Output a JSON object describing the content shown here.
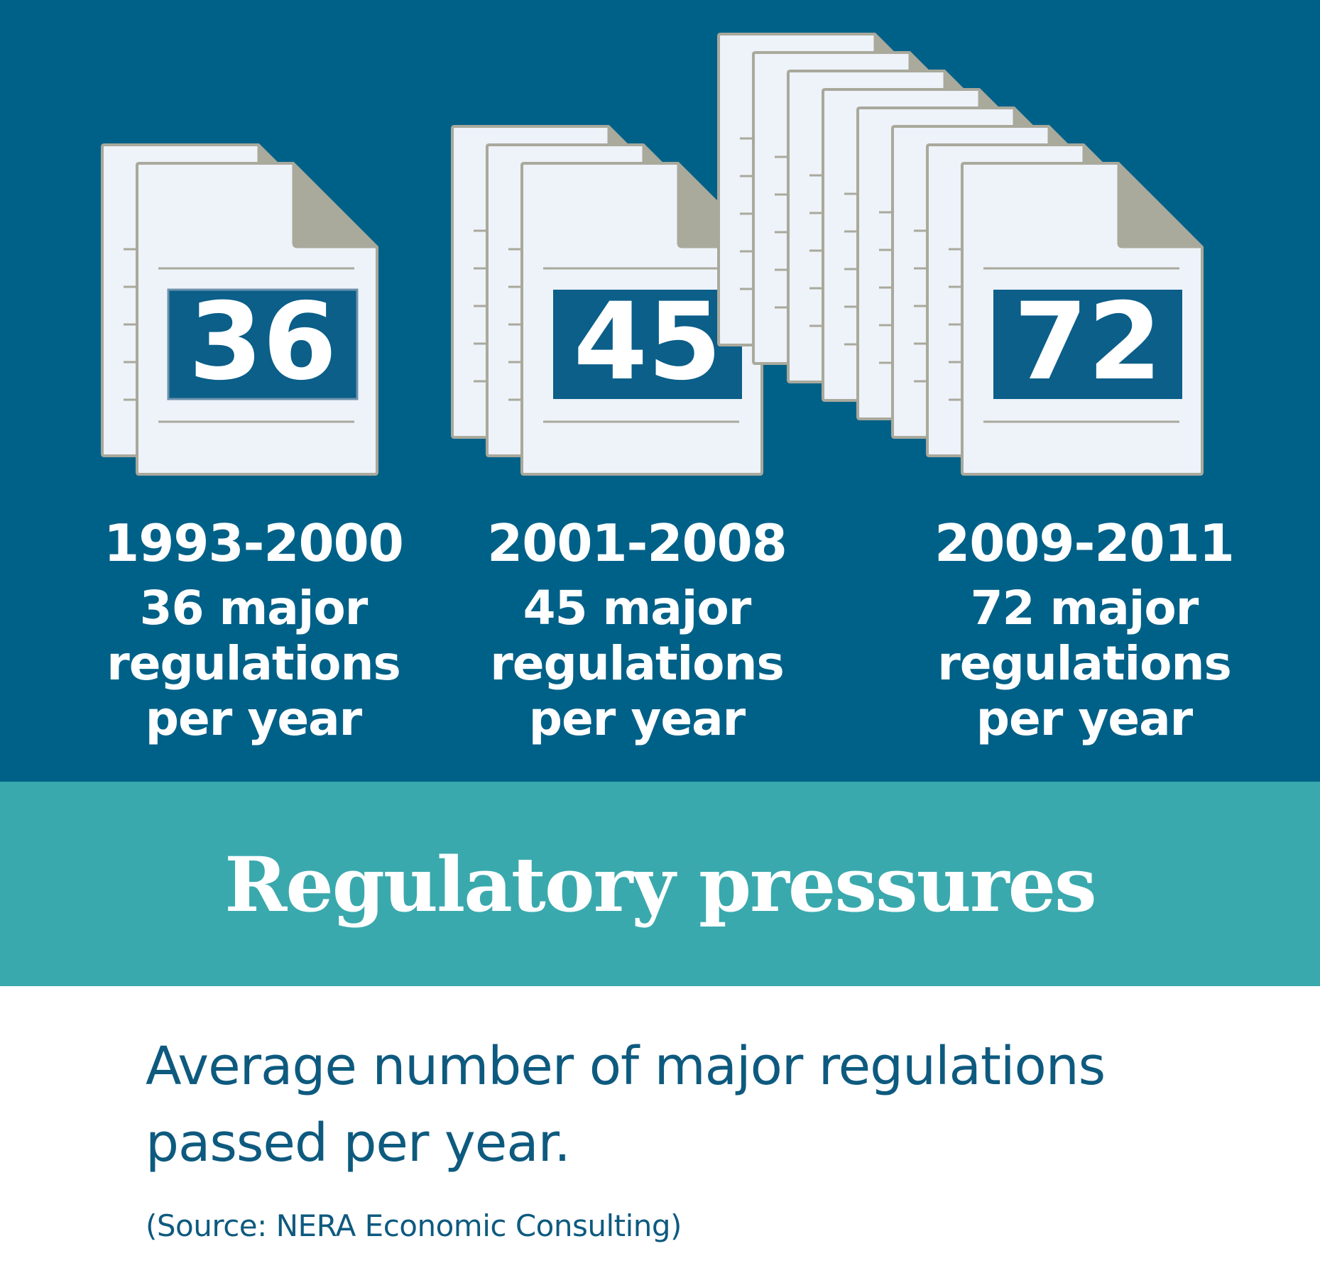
{
  "colors": {
    "panel_bg": "#006188",
    "band_bg": "#3aa9ad",
    "page_fill": "#eef2f9",
    "page_stroke": "#a9a99c",
    "fold_fill": "#a9a99c",
    "label_bg": "#0b5f89",
    "text_dark": "#0e5a7f"
  },
  "chart_data": {
    "type": "pictogram",
    "title": "Regulatory pressures",
    "subtitle": "Average number of major regulations\npassed per year.",
    "source": "(Source: NERA Economic Consulting)",
    "unit": "major regulations per year",
    "series": [
      {
        "period": "1993-2000",
        "value": 36,
        "label": "36",
        "caption": "36 major\nregulations\nper year",
        "icon_pages": 2
      },
      {
        "period": "2001-2008",
        "value": 45,
        "label": "45",
        "caption": "45 major\nregulations\nper year",
        "icon_pages": 3
      },
      {
        "period": "2009-2011",
        "value": 72,
        "label": "72",
        "caption": "72 major\nregulations\nper year",
        "icon_pages": 8
      }
    ]
  }
}
